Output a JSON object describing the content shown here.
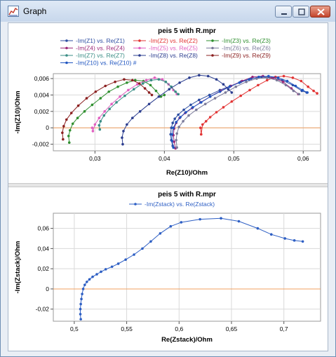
{
  "window": {
    "title": "Graph",
    "icon": "chart-icon"
  },
  "chart_data": [
    {
      "type": "line",
      "title": "peis 5 with R.mpr",
      "xlabel": "Re(Z10)/Ohm",
      "ylabel": "-Im(Z10)/Ohm",
      "xlim": [
        0.024,
        0.0625
      ],
      "ylim": [
        -0.0028,
        0.0066
      ],
      "xticks": [
        0.03,
        0.04,
        0.05,
        0.06
      ],
      "xtick_labels": [
        "0,03",
        "0,04",
        "0,05",
        "0,06"
      ],
      "yticks": [
        -0.002,
        0,
        0.002,
        0.004,
        0.006
      ],
      "ytick_labels": [
        "-0,002",
        "0",
        "0,002",
        "0,004",
        "0,006"
      ],
      "grid": true,
      "legend_position": "top",
      "series": [
        {
          "name": "-Im(Z1) vs. Re(Z1)",
          "color": "#2e4ea2",
          "x": [
            0.0412,
            0.041,
            0.0409,
            0.041,
            0.0412,
            0.0415,
            0.042,
            0.0428,
            0.0438,
            0.045,
            0.0465,
            0.048,
            0.0495,
            0.051,
            0.0525,
            0.054,
            0.0555,
            0.057,
            0.0585,
            0.0598,
            0.0605
          ],
          "y": [
            -0.0022,
            -0.0015,
            -0.0008,
            0.0,
            0.0006,
            0.0011,
            0.0016,
            0.0022,
            0.0028,
            0.0034,
            0.004,
            0.0046,
            0.0051,
            0.0056,
            0.006,
            0.0062,
            0.0061,
            0.0058,
            0.0052,
            0.0045,
            0.0043
          ]
        },
        {
          "name": "-Im(Z2) vs. Re(Z2)",
          "color": "#e23434",
          "x": [
            0.0452,
            0.0453,
            0.0455,
            0.046,
            0.0466,
            0.0475,
            0.0485,
            0.0497,
            0.051,
            0.0523,
            0.0535,
            0.0548,
            0.056,
            0.0572,
            0.0585,
            0.0597,
            0.0607,
            0.0615,
            0.062
          ],
          "y": [
            0.0,
            -0.0008,
            0.0004,
            0.0008,
            0.0013,
            0.0019,
            0.0025,
            0.0032,
            0.0039,
            0.0046,
            0.0052,
            0.0058,
            0.0062,
            0.0063,
            0.0061,
            0.0057,
            0.005,
            0.0045,
            0.0042
          ]
        },
        {
          "name": "-Im(Z3) vs. Re(Z3)",
          "color": "#2f8f2f",
          "x": [
            0.0263,
            0.0262,
            0.0264,
            0.0268,
            0.0275,
            0.0285,
            0.0296,
            0.0308,
            0.032,
            0.0333,
            0.0346,
            0.0358,
            0.037,
            0.038,
            0.0388,
            0.0395,
            0.04
          ],
          "y": [
            -0.0018,
            -0.001,
            -0.0003,
            0.0005,
            0.0012,
            0.002,
            0.0028,
            0.0036,
            0.0044,
            0.005,
            0.0055,
            0.0058,
            0.0057,
            0.0052,
            0.0045,
            0.0038,
            0.004
          ]
        },
        {
          "name": "-Im(Z4) vs. Re(Z4)",
          "color": "#9c2a7a",
          "x": [
            0.0416,
            0.0414,
            0.0413,
            0.0414,
            0.0417,
            0.0422,
            0.043,
            0.044,
            0.0452,
            0.0466,
            0.0481,
            0.0496,
            0.0512,
            0.0527,
            0.0542,
            0.0557,
            0.0571,
            0.0583,
            0.0593
          ],
          "y": [
            -0.0025,
            -0.0017,
            -0.0009,
            -0.0001,
            0.0006,
            0.0012,
            0.0018,
            0.0024,
            0.0031,
            0.0038,
            0.0045,
            0.0051,
            0.0057,
            0.0062,
            0.0063,
            0.0061,
            0.0056,
            0.0048,
            0.0041
          ]
        },
        {
          "name": "-Im(Z5) vs. Re(Z5)",
          "color": "#e060c0",
          "x": [
            0.0296,
            0.0297,
            0.03,
            0.0306,
            0.0314,
            0.0324,
            0.0336,
            0.0348,
            0.0361,
            0.0374,
            0.0386,
            0.0397,
            0.0406,
            0.0413,
            0.0418
          ],
          "y": [
            0.0,
            -0.0004,
            0.0004,
            0.0012,
            0.002,
            0.0029,
            0.0038,
            0.0046,
            0.0053,
            0.0058,
            0.0061,
            0.0059,
            0.0053,
            0.0046,
            0.0041
          ]
        },
        {
          "name": "-Im(Z6) vs. Re(Z6)",
          "color": "#7a7a9a",
          "x": [
            0.0418,
            0.0417,
            0.0418,
            0.0421,
            0.0427,
            0.0435,
            0.0446,
            0.0459,
            0.0473,
            0.0488,
            0.0503,
            0.0518,
            0.0533,
            0.0548,
            0.0562,
            0.0575,
            0.0586,
            0.0594
          ],
          "y": [
            -0.0024,
            -0.0015,
            -0.0007,
            0.0001,
            0.0008,
            0.0015,
            0.0022,
            0.0029,
            0.0036,
            0.0043,
            0.005,
            0.0056,
            0.006,
            0.0061,
            0.0058,
            0.0052,
            0.0045,
            0.0041
          ]
        },
        {
          "name": "-Im(Z7) vs. Re(Z7)",
          "color": "#3a8d85",
          "x": [
            0.0307,
            0.0306,
            0.0308,
            0.0313,
            0.0321,
            0.0331,
            0.0343,
            0.0356,
            0.0369,
            0.0381,
            0.0392,
            0.0402,
            0.041,
            0.0416,
            0.042
          ],
          "y": [
            -0.0002,
            0.0003,
            0.0008,
            0.0015,
            0.0023,
            0.0031,
            0.0039,
            0.0047,
            0.0054,
            0.0058,
            0.0059,
            0.0056,
            0.005,
            0.0044,
            0.0041
          ]
        },
        {
          "name": "-Im(Z8) vs. Re(Z8)",
          "color": "#2b3d8f",
          "x": [
            0.034,
            0.0339,
            0.0341,
            0.0346,
            0.0354,
            0.0365,
            0.0378,
            0.0392,
            0.0407,
            0.0422,
            0.0436,
            0.045,
            0.0463,
            0.0475,
            0.0485,
            0.0492,
            0.0497
          ],
          "y": [
            -0.002,
            -0.0012,
            -0.0004,
            0.0004,
            0.0012,
            0.002,
            0.0029,
            0.0038,
            0.0047,
            0.0055,
            0.0061,
            0.0064,
            0.0063,
            0.0059,
            0.0053,
            0.0047,
            0.0043
          ]
        },
        {
          "name": "-Im(Z9) vs. Re(Z9)",
          "color": "#8b2020",
          "x": [
            0.0254,
            0.0253,
            0.0255,
            0.0259,
            0.0266,
            0.0276,
            0.0288,
            0.0301,
            0.0315,
            0.0329,
            0.0342,
            0.0354,
            0.0364,
            0.0372,
            0.0378,
            0.0382
          ],
          "y": [
            -0.0014,
            -0.0006,
            0.0002,
            0.001,
            0.0018,
            0.0027,
            0.0036,
            0.0044,
            0.0051,
            0.0056,
            0.0059,
            0.0058,
            0.0054,
            0.0048,
            0.0043,
            0.004
          ]
        },
        {
          "name": "-Im(Z10) vs. Re(Z10) #",
          "color": "#1f55c0",
          "x": [
            0.0413,
            0.0411,
            0.0411,
            0.0413,
            0.0417,
            0.0423,
            0.0431,
            0.0441,
            0.0453,
            0.0466,
            0.048,
            0.0494,
            0.0508,
            0.0522,
            0.0536,
            0.055,
            0.0564,
            0.0577,
            0.0589,
            0.0599,
            0.0606
          ],
          "y": [
            -0.0024,
            -0.0016,
            -0.0008,
            0.0,
            0.0007,
            0.0013,
            0.0019,
            0.0025,
            0.0031,
            0.0038,
            0.0044,
            0.005,
            0.0055,
            0.0059,
            0.0062,
            0.0063,
            0.0061,
            0.0057,
            0.0051,
            0.0046,
            0.0043
          ]
        }
      ]
    },
    {
      "type": "line",
      "title": "peis 5 with R.mpr",
      "xlabel": "Re(Zstack)/Ohm",
      "ylabel": "-Im(Zstack)/Ohm",
      "xlim": [
        0.48,
        0.735
      ],
      "ylim": [
        -0.032,
        0.075
      ],
      "xticks": [
        0.5,
        0.55,
        0.6,
        0.65,
        0.7
      ],
      "xtick_labels": [
        "0,5",
        "0,55",
        "0,6",
        "0,65",
        "0,7"
      ],
      "yticks": [
        -0.02,
        0,
        0.02,
        0.04,
        0.06
      ],
      "ytick_labels": [
        "-0,02",
        "0",
        "0,02",
        "0,04",
        "0,06"
      ],
      "grid": true,
      "legend_position": "top",
      "series": [
        {
          "name": "-Im(Zstack) vs. Re(Zstack)",
          "color": "#2e5fc4",
          "x": [
            0.5062,
            0.5058,
            0.5058,
            0.5062,
            0.5068,
            0.5075,
            0.5085,
            0.51,
            0.512,
            0.5145,
            0.5175,
            0.5215,
            0.5255,
            0.53,
            0.536,
            0.542,
            0.549,
            0.557,
            0.565,
            0.573,
            0.582,
            0.592,
            0.602,
            0.62,
            0.64,
            0.657,
            0.675,
            0.688,
            0.701,
            0.71,
            0.718
          ],
          "y": [
            -0.03,
            -0.025,
            -0.02,
            -0.015,
            -0.01,
            -0.005,
            0.0,
            0.004,
            0.007,
            0.0095,
            0.012,
            0.0145,
            0.017,
            0.0195,
            0.022,
            0.025,
            0.029,
            0.034,
            0.04,
            0.047,
            0.055,
            0.062,
            0.066,
            0.069,
            0.07,
            0.067,
            0.06,
            0.054,
            0.05,
            0.048,
            0.047
          ]
        }
      ]
    }
  ]
}
